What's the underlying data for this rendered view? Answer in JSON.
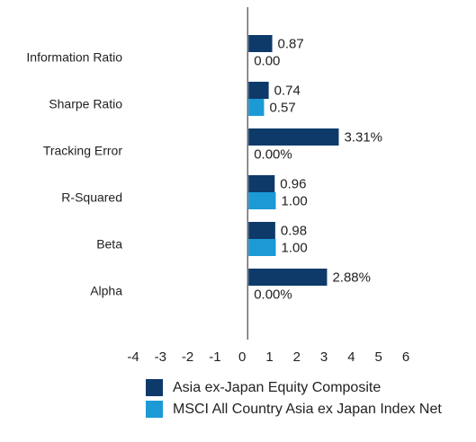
{
  "chart_data": {
    "type": "hbar",
    "categories": [
      "Information Ratio",
      "Sharpe Ratio",
      "Tracking Error",
      "R-Squared",
      "Beta",
      "Alpha"
    ],
    "series": [
      {
        "name": "Asia ex-Japan Equity Composite",
        "color": "#0e3a6a",
        "values": [
          0.87,
          0.74,
          3.31,
          0.96,
          0.98,
          2.88
        ],
        "value_labels": [
          "0.87",
          "0.74",
          "3.31%",
          "0.96",
          "0.98",
          "2.88%"
        ]
      },
      {
        "name": "MSCI All Country Asia ex Japan Index Net",
        "color": "#1b9ad6",
        "values": [
          0,
          0.57,
          0,
          1,
          1,
          0
        ],
        "value_labels": [
          "0.00",
          "0.57",
          "0.00%",
          "1.00",
          "1.00",
          "0.00%"
        ]
      }
    ],
    "xlim": [
      -4,
      6
    ],
    "xticks": [
      -4,
      -3,
      -2,
      -1,
      0,
      1,
      2,
      3,
      4,
      5,
      6
    ]
  }
}
